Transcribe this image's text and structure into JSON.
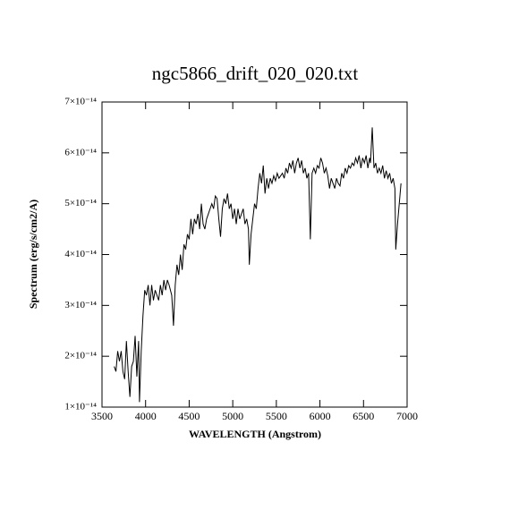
{
  "chart_data": {
    "type": "line",
    "title": "ngc5866_drift_020_020.txt",
    "x_label": "WAVELENGTH (Angstrom)",
    "y_label": "Spectrum (erg/s/cm2/A)",
    "color": "#000000",
    "xlim": [
      3500,
      7000
    ],
    "xticks": [
      3500,
      4000,
      4500,
      5000,
      5500,
      6000,
      6500,
      7000
    ],
    "ylim": [
      1e-14,
      7e-14
    ],
    "yticks": [
      {
        "value": 1e-14,
        "label": "1×10⁻¹⁴"
      },
      {
        "value": 2e-14,
        "label": "2×10⁻¹⁴"
      },
      {
        "value": 3e-14,
        "label": "3×10⁻¹⁴"
      },
      {
        "value": 4e-14,
        "label": "4×10⁻¹⁴"
      },
      {
        "value": 5e-14,
        "label": "5×10⁻¹⁴"
      },
      {
        "value": 6e-14,
        "label": "6×10⁻¹⁴"
      },
      {
        "value": 7e-14,
        "label": "7×10⁻¹⁴"
      }
    ],
    "x": [
      3640,
      3660,
      3680,
      3700,
      3720,
      3740,
      3760,
      3780,
      3800,
      3820,
      3840,
      3860,
      3880,
      3900,
      3920,
      3930,
      3950,
      3970,
      3990,
      4010,
      4030,
      4050,
      4070,
      4090,
      4110,
      4130,
      4150,
      4170,
      4190,
      4210,
      4230,
      4250,
      4270,
      4300,
      4320,
      4340,
      4360,
      4380,
      4400,
      4420,
      4440,
      4460,
      4480,
      4500,
      4520,
      4540,
      4560,
      4580,
      4600,
      4620,
      4640,
      4660,
      4680,
      4700,
      4720,
      4740,
      4760,
      4780,
      4800,
      4820,
      4840,
      4860,
      4880,
      4900,
      4920,
      4940,
      4960,
      4980,
      5000,
      5020,
      5040,
      5060,
      5080,
      5100,
      5120,
      5140,
      5160,
      5180,
      5190,
      5210,
      5230,
      5250,
      5270,
      5290,
      5310,
      5330,
      5350,
      5370,
      5390,
      5410,
      5430,
      5450,
      5470,
      5490,
      5510,
      5530,
      5550,
      5570,
      5590,
      5610,
      5630,
      5650,
      5670,
      5690,
      5710,
      5730,
      5750,
      5770,
      5790,
      5810,
      5830,
      5850,
      5870,
      5890,
      5910,
      5930,
      5950,
      5970,
      5990,
      6010,
      6030,
      6050,
      6070,
      6090,
      6110,
      6130,
      6150,
      6170,
      6190,
      6210,
      6230,
      6250,
      6270,
      6290,
      6310,
      6330,
      6350,
      6370,
      6390,
      6410,
      6430,
      6450,
      6470,
      6490,
      6510,
      6530,
      6550,
      6570,
      6580,
      6600,
      6620,
      6640,
      6660,
      6680,
      6700,
      6720,
      6740,
      6760,
      6780,
      6800,
      6820,
      6840,
      6860,
      6870,
      6890,
      6910,
      6930
    ],
    "values": [
      1.8e-14,
      1.7e-14,
      2.1e-14,
      1.9e-14,
      2.1e-14,
      1.7e-14,
      1.55e-14,
      2.3e-14,
      1.7e-14,
      1.2e-14,
      1.8e-14,
      1.9e-14,
      2.4e-14,
      1.6e-14,
      2.3e-14,
      1.1e-14,
      2.1e-14,
      2.8e-14,
      3.3e-14,
      3.2e-14,
      3.4e-14,
      3e-14,
      3.4e-14,
      3.1e-14,
      3.3e-14,
      3.2e-14,
      3.1e-14,
      3.4e-14,
      3.2e-14,
      3.5e-14,
      3.3e-14,
      3.5e-14,
      3.4e-14,
      3.2e-14,
      2.6e-14,
      3.4e-14,
      3.8e-14,
      3.6e-14,
      4e-14,
      3.7e-14,
      4.2e-14,
      4.1e-14,
      4.4e-14,
      4.3e-14,
      4.7e-14,
      4.4e-14,
      4.7e-14,
      4.6e-14,
      4.8e-14,
      4.5e-14,
      5e-14,
      4.6e-14,
      4.5e-14,
      4.7e-14,
      4.8e-14,
      4.9e-14,
      5e-14,
      4.9e-14,
      5.15e-14,
      5.1e-14,
      4.7e-14,
      4.35e-14,
      4.9e-14,
      5.1e-14,
      5e-14,
      5.2e-14,
      4.9e-14,
      5e-14,
      4.7e-14,
      4.9e-14,
      4.6e-14,
      4.9e-14,
      4.7e-14,
      4.8e-14,
      4.9e-14,
      4.6e-14,
      4.7e-14,
      4.5e-14,
      3.8e-14,
      4.4e-14,
      4.7e-14,
      5e-14,
      4.9e-14,
      5.3e-14,
      5.6e-14,
      5.4e-14,
      5.75e-14,
      5.2e-14,
      5.5e-14,
      5.3e-14,
      5.5e-14,
      5.4e-14,
      5.55e-14,
      5.45e-14,
      5.6e-14,
      5.5e-14,
      5.55e-14,
      5.6e-14,
      5.5e-14,
      5.7e-14,
      5.6e-14,
      5.8e-14,
      5.7e-14,
      5.85e-14,
      5.6e-14,
      5.8e-14,
      5.9e-14,
      5.7e-14,
      5.85e-14,
      5.6e-14,
      5.7e-14,
      5.5e-14,
      5.6e-14,
      4.3e-14,
      5.6e-14,
      5.7e-14,
      5.6e-14,
      5.75e-14,
      5.7e-14,
      5.9e-14,
      5.8e-14,
      5.6e-14,
      5.7e-14,
      5.55e-14,
      5.3e-14,
      5.5e-14,
      5.4e-14,
      5.3e-14,
      5.5e-14,
      5.4e-14,
      5.35e-14,
      5.6e-14,
      5.5e-14,
      5.7e-14,
      5.6e-14,
      5.75e-14,
      5.7e-14,
      5.8e-14,
      5.75e-14,
      5.9e-14,
      5.8e-14,
      5.95e-14,
      5.7e-14,
      5.9e-14,
      5.8e-14,
      5.95e-14,
      5.7e-14,
      5.9e-14,
      5.8e-14,
      6.5e-14,
      5.7e-14,
      5.8e-14,
      5.6e-14,
      5.7e-14,
      5.6e-14,
      5.75e-14,
      5.5e-14,
      5.65e-14,
      5.5e-14,
      5.6e-14,
      5.4e-14,
      5.5e-14,
      5.3e-14,
      4.1e-14,
      4.6e-14,
      5e-14,
      5.4e-14
    ]
  }
}
